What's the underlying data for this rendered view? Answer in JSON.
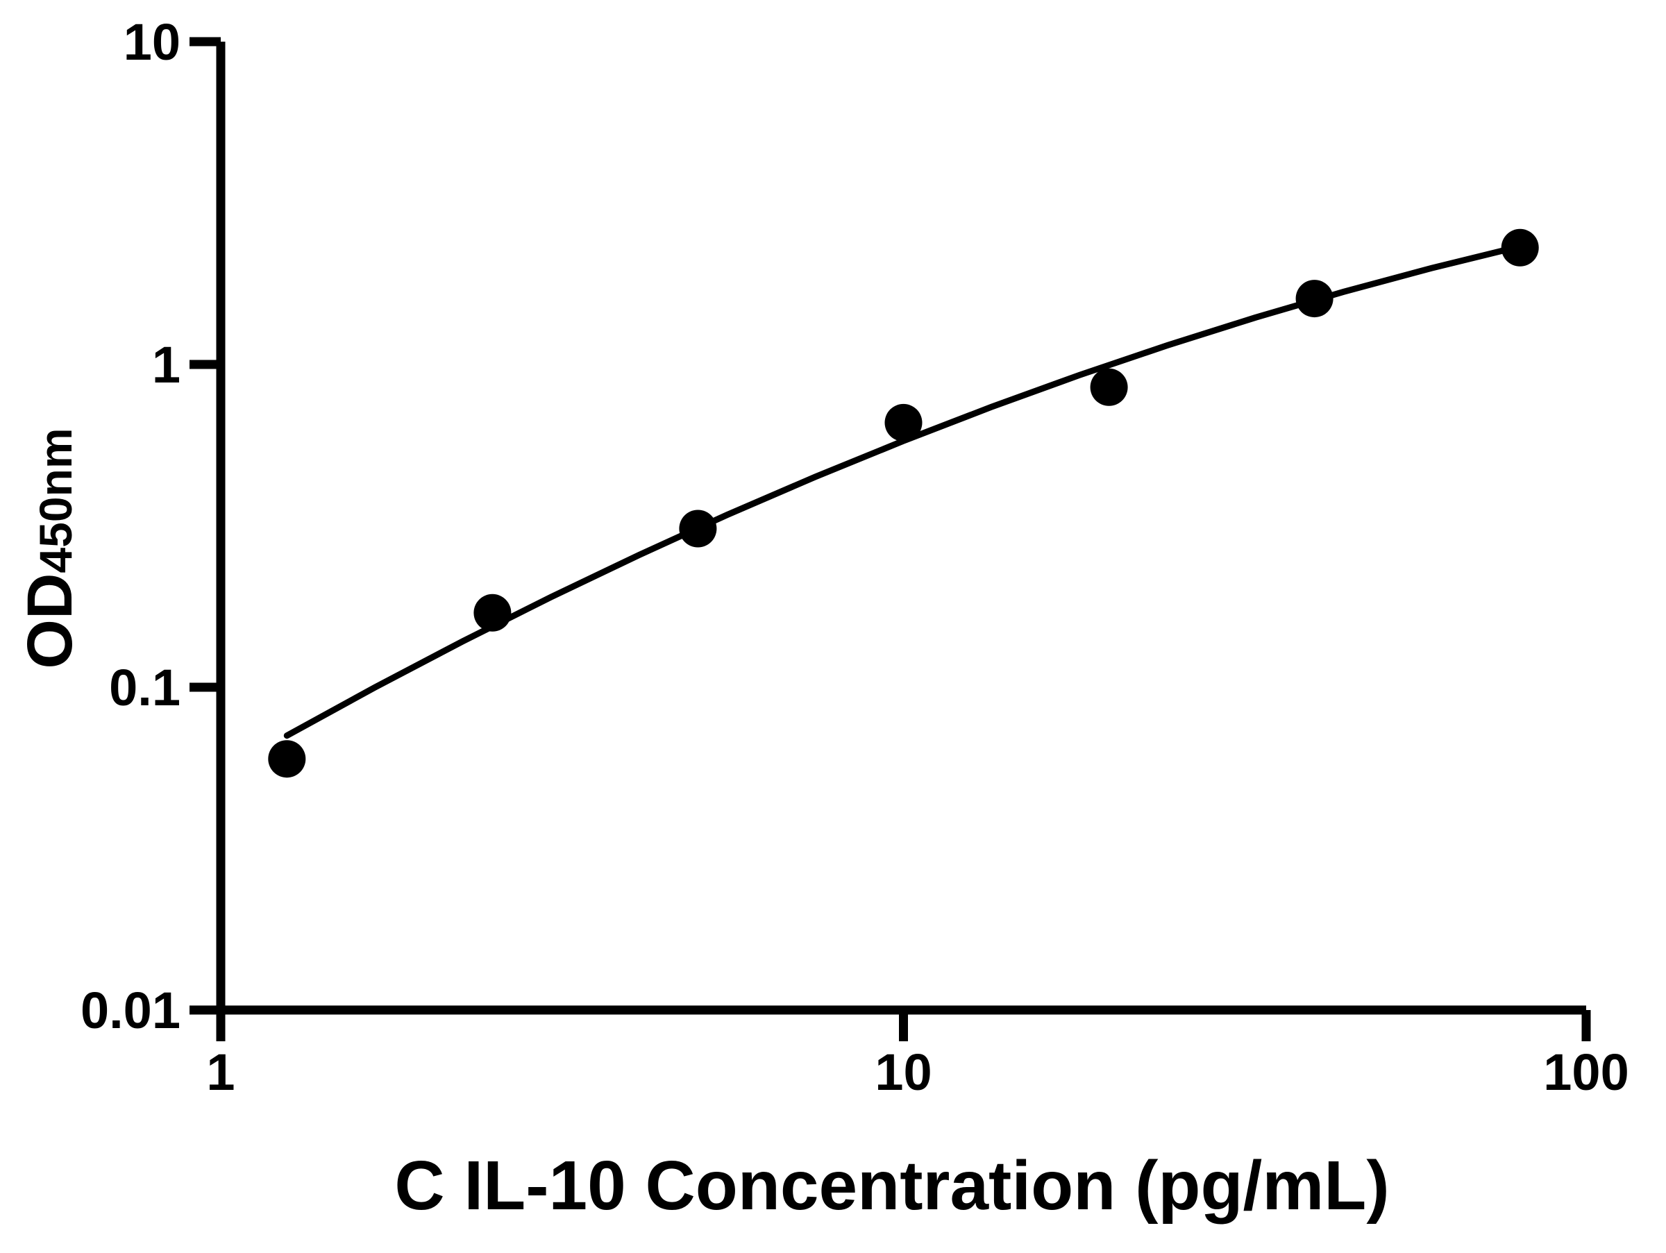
{
  "figure": {
    "kind": "ELISA standard curve plot",
    "background_color": "#ffffff"
  },
  "chart_data": {
    "type": "scatter",
    "title": "",
    "xlabel": "C IL-10 Concentration (pg/mL)",
    "ylabel": "OD",
    "ylabel_subscript": "450nm",
    "x_scale": "log",
    "y_scale": "log",
    "xlim": [
      1,
      100
    ],
    "ylim": [
      0.01,
      10
    ],
    "grid": false,
    "legend": "none",
    "x_ticks": [
      {
        "value": 1,
        "label": "1"
      },
      {
        "value": 10,
        "label": "10"
      },
      {
        "value": 100,
        "label": "100"
      }
    ],
    "y_ticks": [
      {
        "value": 10,
        "label": "10"
      },
      {
        "value": 1,
        "label": "1"
      },
      {
        "value": 0.1,
        "label": "0.1"
      },
      {
        "value": 0.01,
        "label": "0.01"
      }
    ],
    "series": [
      {
        "name": "standard-curve-points",
        "marker": "filled-circle",
        "points": [
          {
            "x": 1.25,
            "y": 0.06
          },
          {
            "x": 2.5,
            "y": 0.17
          },
          {
            "x": 5,
            "y": 0.31
          },
          {
            "x": 10,
            "y": 0.66
          },
          {
            "x": 20,
            "y": 0.85
          },
          {
            "x": 40,
            "y": 1.6
          },
          {
            "x": 80,
            "y": 2.3
          }
        ]
      }
    ],
    "fit_curve": [
      [
        1.25,
        0.0708
      ],
      [
        1.682,
        0.0999
      ],
      [
        2.264,
        0.1389
      ],
      [
        3.048,
        0.1904
      ],
      [
        4.101,
        0.257
      ],
      [
        5.519,
        0.3421
      ],
      [
        7.429,
        0.4486
      ],
      [
        10.0,
        0.5797
      ],
      [
        13.455,
        0.7385
      ],
      [
        18.109,
        0.927
      ],
      [
        24.37,
        1.1467
      ],
      [
        32.8,
        1.398
      ],
      [
        44.14,
        1.6793
      ],
      [
        59.4,
        1.9887
      ],
      [
        80.0,
        2.3213
      ]
    ],
    "colors": {
      "axis": "#000000",
      "ticks": "#000000",
      "points": "#000000",
      "curve": "#000000",
      "text": "#000000",
      "background": "#ffffff"
    }
  }
}
